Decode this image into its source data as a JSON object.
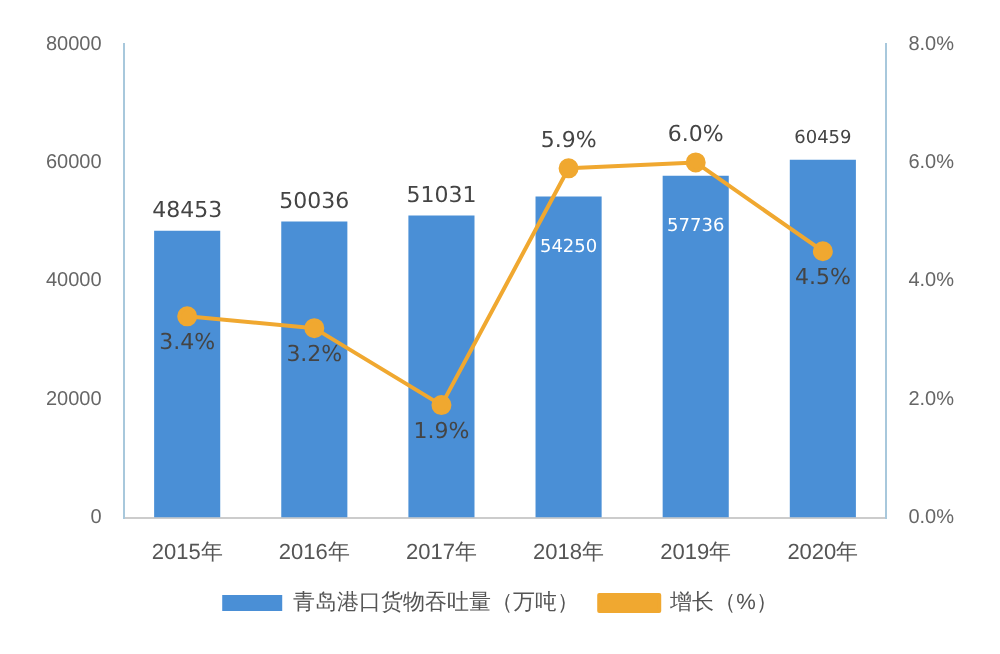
{
  "chart_data": {
    "type": "bar",
    "categories": [
      "2015年",
      "2016年",
      "2017年",
      "2018年",
      "2019年",
      "2020年"
    ],
    "series": [
      {
        "name": "青岛港口货物吞吐量（万吨）",
        "color": "#4a8fd6",
        "values": [
          48453,
          50036,
          51031,
          54250,
          57736,
          60459
        ],
        "value_labels": [
          "48453",
          "50036",
          "51031",
          "54250",
          "57736",
          "60459"
        ]
      },
      {
        "name": "增长（%）",
        "type": "line",
        "axis": "y2",
        "color": "#f0a830",
        "marker": "circle",
        "values": [
          3.4,
          3.2,
          1.9,
          5.9,
          6.0,
          4.5
        ],
        "value_labels": [
          "3.4%",
          "3.2%",
          "1.9%",
          "5.9%",
          "6.0%",
          "4.5%"
        ]
      }
    ],
    "ylim": [
      0,
      80000
    ],
    "yticks": [
      0,
      20000,
      40000,
      60000,
      80000
    ],
    "y2lim": [
      0,
      8
    ],
    "y2ticks": [
      {
        "value": 0,
        "label": "0.0%"
      },
      {
        "value": 2,
        "label": "2.0%"
      },
      {
        "value": 4,
        "label": "4.0%"
      },
      {
        "value": 6,
        "label": "6.0%"
      },
      {
        "value": 8,
        "label": "8.0%"
      }
    ],
    "grid": false,
    "legend": "bottom"
  }
}
